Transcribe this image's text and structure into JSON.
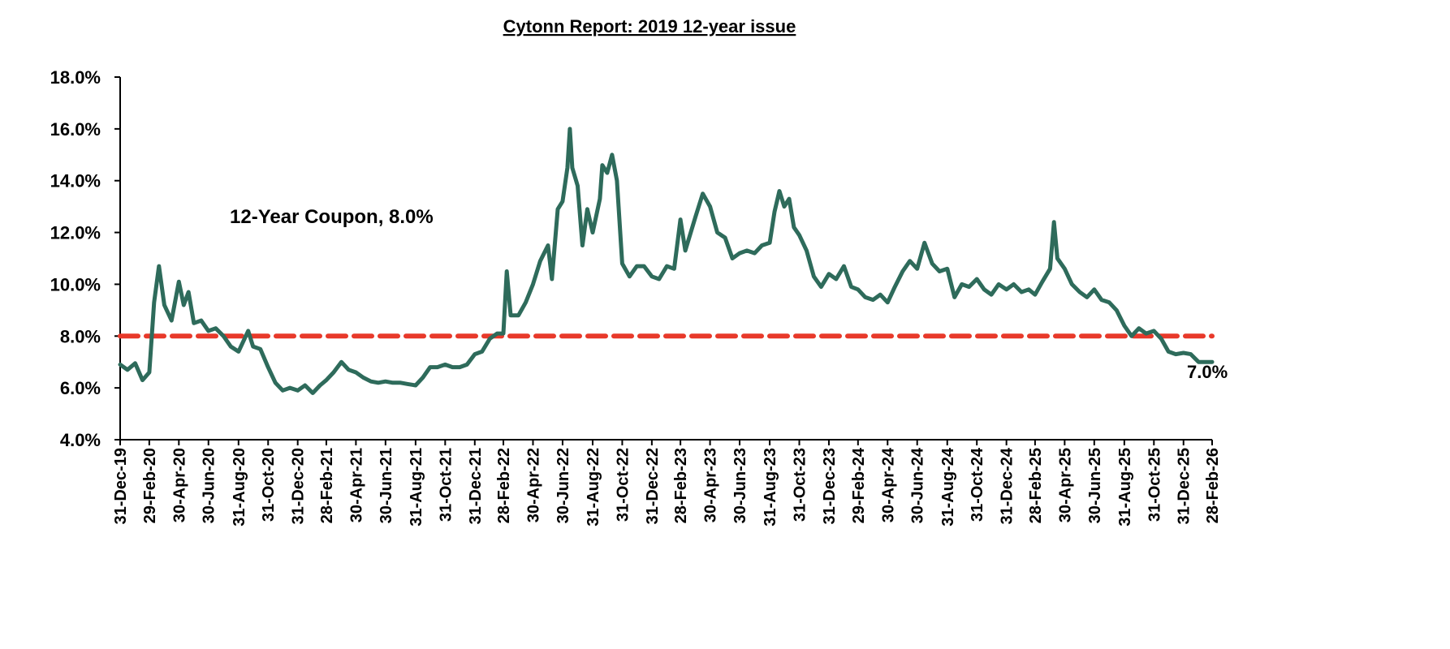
{
  "chart_data": {
    "type": "line",
    "title": "Cytonn Report: 2019 12-year issue",
    "xlabel": "",
    "ylabel": "",
    "ylim": [
      4.0,
      18.0
    ],
    "y_ticks": [
      "4.0%",
      "6.0%",
      "8.0%",
      "10.0%",
      "12.0%",
      "14.0%",
      "16.0%",
      "18.0%"
    ],
    "x_ticks": [
      "31-Dec-19",
      "29-Feb-20",
      "30-Apr-20",
      "30-Jun-20",
      "31-Aug-20",
      "31-Oct-20",
      "31-Dec-20",
      "28-Feb-21",
      "30-Apr-21",
      "30-Jun-21",
      "31-Aug-21",
      "31-Oct-21",
      "31-Dec-21",
      "28-Feb-22",
      "30-Apr-22",
      "30-Jun-22",
      "31-Aug-22",
      "31-Oct-22",
      "31-Dec-22",
      "28-Feb-23",
      "30-Apr-23",
      "30-Jun-23",
      "31-Aug-23",
      "31-Oct-23",
      "31-Dec-23",
      "29-Feb-24",
      "30-Apr-24",
      "30-Jun-24",
      "31-Aug-24",
      "31-Oct-24",
      "31-Dec-24",
      "28-Feb-25",
      "30-Apr-25",
      "30-Jun-25",
      "31-Aug-25",
      "31-Oct-25",
      "31-Dec-25",
      "28-Feb-26"
    ],
    "grid": false,
    "colors": {
      "series": "#2e6b5b",
      "coupon": "#e8392a"
    },
    "coupon_line": {
      "value": 8.0,
      "label": "12-Year Coupon, 8.0%"
    },
    "end_label": "7.0%",
    "series": [
      {
        "x": [
          "2019-12-31",
          "2020-01-15",
          "2020-01-31",
          "2020-02-15",
          "2020-02-29",
          "2020-03-10",
          "2020-03-20",
          "2020-03-31",
          "2020-04-15",
          "2020-04-30",
          "2020-05-10",
          "2020-05-20",
          "2020-05-31",
          "2020-06-15",
          "2020-06-30",
          "2020-07-15",
          "2020-07-31",
          "2020-08-15",
          "2020-08-31",
          "2020-09-20",
          "2020-09-30",
          "2020-10-15",
          "2020-10-31",
          "2020-11-15",
          "2020-11-30",
          "2020-12-15",
          "2020-12-31",
          "2021-01-15",
          "2021-01-31",
          "2021-02-15",
          "2021-02-28",
          "2021-03-15",
          "2021-03-31",
          "2021-04-15",
          "2021-04-30",
          "2021-05-15",
          "2021-05-31",
          "2021-06-15",
          "2021-06-30",
          "2021-07-15",
          "2021-07-31",
          "2021-08-15",
          "2021-08-31",
          "2021-09-15",
          "2021-09-30",
          "2021-10-15",
          "2021-10-31",
          "2021-11-15",
          "2021-11-30",
          "2021-12-15",
          "2021-12-31",
          "2022-01-15",
          "2022-01-31",
          "2022-02-15",
          "2022-02-28",
          "2022-03-07",
          "2022-03-15",
          "2022-03-31",
          "2022-04-15",
          "2022-04-30",
          "2022-05-15",
          "2022-05-31",
          "2022-06-08",
          "2022-06-20",
          "2022-06-30",
          "2022-07-10",
          "2022-07-15",
          "2022-07-20",
          "2022-07-31",
          "2022-08-10",
          "2022-08-20",
          "2022-08-31",
          "2022-09-15",
          "2022-09-20",
          "2022-09-30",
          "2022-10-10",
          "2022-10-20",
          "2022-10-31",
          "2022-11-15",
          "2022-11-30",
          "2022-12-15",
          "2022-12-31",
          "2023-01-15",
          "2023-01-31",
          "2023-02-15",
          "2023-02-28",
          "2023-03-10",
          "2023-03-31",
          "2023-04-15",
          "2023-04-30",
          "2023-05-15",
          "2023-05-31",
          "2023-06-15",
          "2023-06-30",
          "2023-07-15",
          "2023-07-31",
          "2023-08-15",
          "2023-08-31",
          "2023-09-10",
          "2023-09-20",
          "2023-09-30",
          "2023-10-10",
          "2023-10-20",
          "2023-10-31",
          "2023-11-15",
          "2023-11-30",
          "2023-12-15",
          "2023-12-31",
          "2024-01-15",
          "2024-01-31",
          "2024-02-15",
          "2024-02-29",
          "2024-03-15",
          "2024-03-31",
          "2024-04-15",
          "2024-04-30",
          "2024-05-15",
          "2024-05-31",
          "2024-06-15",
          "2024-06-30",
          "2024-07-15",
          "2024-07-31",
          "2024-08-15",
          "2024-08-31",
          "2024-09-15",
          "2024-09-30",
          "2024-10-15",
          "2024-10-31",
          "2024-11-15",
          "2024-11-30",
          "2024-12-15",
          "2024-12-31",
          "2025-01-15",
          "2025-01-31",
          "2025-02-15",
          "2025-02-28",
          "2025-03-15",
          "2025-03-31",
          "2025-04-08",
          "2025-04-15",
          "2025-04-30",
          "2025-05-15",
          "2025-05-31",
          "2025-06-15",
          "2025-06-30",
          "2025-07-15",
          "2025-07-31",
          "2025-08-15",
          "2025-08-31",
          "2025-09-15",
          "2025-09-30",
          "2025-10-15",
          "2025-10-31",
          "2025-11-15",
          "2025-11-30",
          "2025-12-15",
          "2025-12-31",
          "2026-01-15",
          "2026-01-31",
          "2026-02-15",
          "2026-02-28"
        ],
        "values": [
          6.9,
          6.7,
          6.95,
          6.3,
          6.6,
          9.3,
          10.7,
          9.2,
          8.6,
          10.1,
          9.2,
          9.7,
          8.5,
          8.6,
          8.2,
          8.3,
          8.0,
          7.6,
          7.4,
          8.2,
          7.6,
          7.5,
          6.8,
          6.2,
          5.9,
          6.0,
          5.9,
          6.1,
          5.8,
          6.1,
          6.3,
          6.6,
          7.0,
          6.7,
          6.6,
          6.4,
          6.25,
          6.2,
          6.25,
          6.2,
          6.2,
          6.15,
          6.1,
          6.4,
          6.8,
          6.8,
          6.9,
          6.8,
          6.8,
          6.9,
          7.3,
          7.4,
          7.9,
          8.1,
          8.1,
          10.5,
          8.8,
          8.8,
          9.3,
          10.0,
          10.9,
          11.5,
          10.2,
          12.9,
          13.2,
          14.5,
          16.0,
          14.5,
          13.8,
          11.5,
          12.9,
          12.0,
          13.3,
          14.6,
          14.3,
          15.0,
          14.0,
          10.8,
          10.3,
          10.7,
          10.7,
          10.3,
          10.2,
          10.7,
          10.6,
          12.5,
          11.3,
          12.6,
          13.5,
          13.0,
          12.0,
          11.8,
          11.0,
          11.2,
          11.3,
          11.2,
          11.5,
          11.6,
          12.8,
          13.6,
          13.0,
          13.3,
          12.2,
          11.9,
          11.3,
          10.3,
          9.9,
          10.4,
          10.2,
          10.7,
          9.9,
          9.8,
          9.5,
          9.4,
          9.6,
          9.3,
          9.9,
          10.5,
          10.9,
          10.6,
          11.6,
          10.8,
          10.5,
          10.6,
          9.5,
          10.0,
          9.9,
          10.2,
          9.8,
          9.6,
          10.0,
          9.8,
          10.0,
          9.7,
          9.8,
          9.6,
          10.1,
          10.6,
          12.4,
          11.0,
          10.6,
          10.0,
          9.7,
          9.5,
          9.8,
          9.4,
          9.3,
          9.0,
          8.4,
          8.0,
          8.3,
          8.1,
          8.2,
          7.9,
          7.4,
          7.3,
          7.35,
          7.3,
          7.0,
          7.0,
          7.0
        ]
      }
    ]
  }
}
